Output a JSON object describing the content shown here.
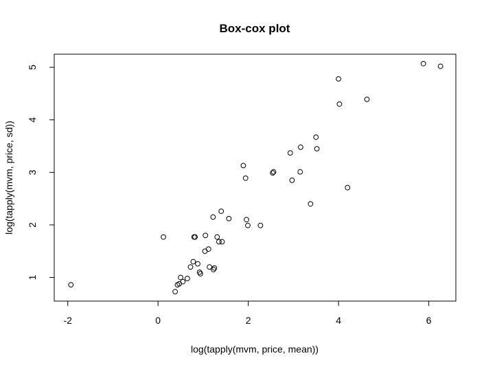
{
  "chart_data": {
    "type": "scatter",
    "title": "Box-cox plot",
    "xlabel": "log(tapply(mvm, price, mean))",
    "ylabel": "log(tapply(mvm, price, sd))",
    "xlim": [
      -2.3,
      6.6
    ],
    "ylim": [
      0.55,
      5.25
    ],
    "x_ticks": [
      -2,
      0,
      2,
      4,
      6
    ],
    "y_ticks": [
      1,
      2,
      3,
      4,
      5
    ],
    "x_tick_labels": [
      "-2",
      "0",
      "2",
      "4",
      "6"
    ],
    "y_tick_labels": [
      "1",
      "2",
      "3",
      "4",
      "5"
    ],
    "grid": false,
    "marker": "open-circle",
    "points": [
      [
        -1.93,
        0.86
      ],
      [
        0.12,
        1.77
      ],
      [
        0.38,
        0.73
      ],
      [
        0.43,
        0.86
      ],
      [
        0.47,
        0.88
      ],
      [
        0.5,
        1.0
      ],
      [
        0.55,
        0.92
      ],
      [
        0.65,
        0.98
      ],
      [
        0.72,
        1.2
      ],
      [
        0.78,
        1.3
      ],
      [
        0.8,
        1.77
      ],
      [
        0.82,
        1.77
      ],
      [
        0.88,
        1.26
      ],
      [
        0.92,
        1.1
      ],
      [
        0.94,
        1.07
      ],
      [
        1.04,
        1.5
      ],
      [
        1.05,
        1.8
      ],
      [
        1.12,
        1.54
      ],
      [
        1.14,
        1.2
      ],
      [
        1.22,
        2.15
      ],
      [
        1.23,
        1.15
      ],
      [
        1.25,
        1.18
      ],
      [
        1.31,
        1.77
      ],
      [
        1.35,
        1.68
      ],
      [
        1.42,
        1.68
      ],
      [
        1.4,
        2.26
      ],
      [
        1.57,
        2.12
      ],
      [
        1.89,
        3.13
      ],
      [
        1.94,
        2.89
      ],
      [
        1.96,
        2.1
      ],
      [
        1.99,
        1.99
      ],
      [
        2.27,
        1.99
      ],
      [
        2.54,
        2.99
      ],
      [
        2.56,
        3.01
      ],
      [
        2.93,
        3.37
      ],
      [
        2.97,
        2.85
      ],
      [
        3.15,
        3.01
      ],
      [
        3.16,
        3.48
      ],
      [
        3.38,
        2.4
      ],
      [
        3.5,
        3.67
      ],
      [
        3.52,
        3.45
      ],
      [
        4.0,
        4.78
      ],
      [
        4.02,
        4.3
      ],
      [
        4.2,
        2.71
      ],
      [
        4.63,
        4.39
      ],
      [
        5.88,
        5.07
      ],
      [
        6.26,
        5.02
      ]
    ]
  }
}
